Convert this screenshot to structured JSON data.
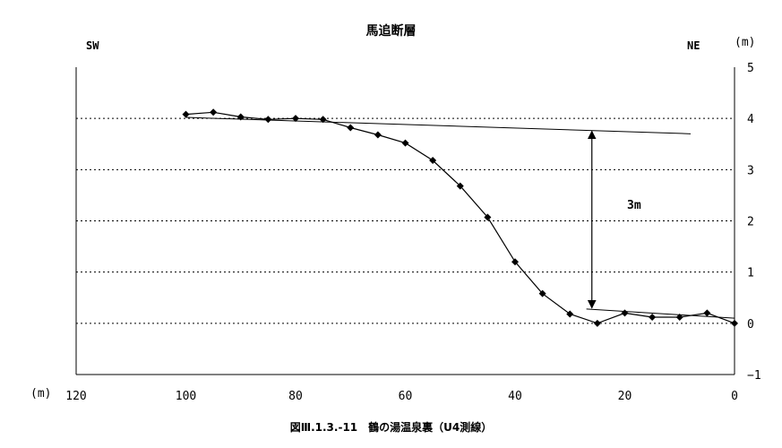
{
  "chart_data": {
    "type": "line",
    "title": "馬追断層",
    "left_label": "SW",
    "right_label": "NE",
    "y_unit": "(m)",
    "x_unit": "(m)",
    "xlim": [
      120,
      0
    ],
    "ylim": [
      -1,
      5
    ],
    "x_ticks": [
      "120",
      "100",
      "80",
      "60",
      "40",
      "20",
      "0"
    ],
    "y_ticks": [
      "5",
      "4",
      "3",
      "2",
      "1",
      "0",
      "−1"
    ],
    "grid": "dotted horizontal",
    "series": [
      {
        "points": [
          [
            100,
            4.08
          ],
          [
            95,
            4.12
          ],
          [
            90,
            4.03
          ],
          [
            85,
            3.98
          ],
          [
            80,
            4.0
          ],
          [
            75,
            3.98
          ],
          [
            70,
            3.82
          ],
          [
            65,
            3.68
          ],
          [
            60,
            3.52
          ],
          [
            55,
            3.18
          ],
          [
            50,
            2.68
          ],
          [
            45,
            2.07
          ],
          [
            40,
            1.2
          ],
          [
            35,
            0.58
          ],
          [
            30,
            0.18
          ],
          [
            25,
            0.0
          ],
          [
            20,
            0.2
          ],
          [
            15,
            0.12
          ],
          [
            10,
            0.12
          ],
          [
            5,
            0.2
          ],
          [
            0,
            0.0
          ]
        ]
      }
    ],
    "reference_lines": [
      {
        "from": [
          100,
          4.02
        ],
        "to": [
          8,
          3.7
        ]
      },
      {
        "from": [
          27,
          0.28
        ],
        "to": [
          0,
          0.1
        ]
      }
    ],
    "annotation": {
      "text": "3m",
      "x": 26,
      "y_from": 3.75,
      "y_to": 0.3
    }
  },
  "caption": "図Ⅲ.1.3.-11　鶴の湯温泉裏（U4測線）"
}
